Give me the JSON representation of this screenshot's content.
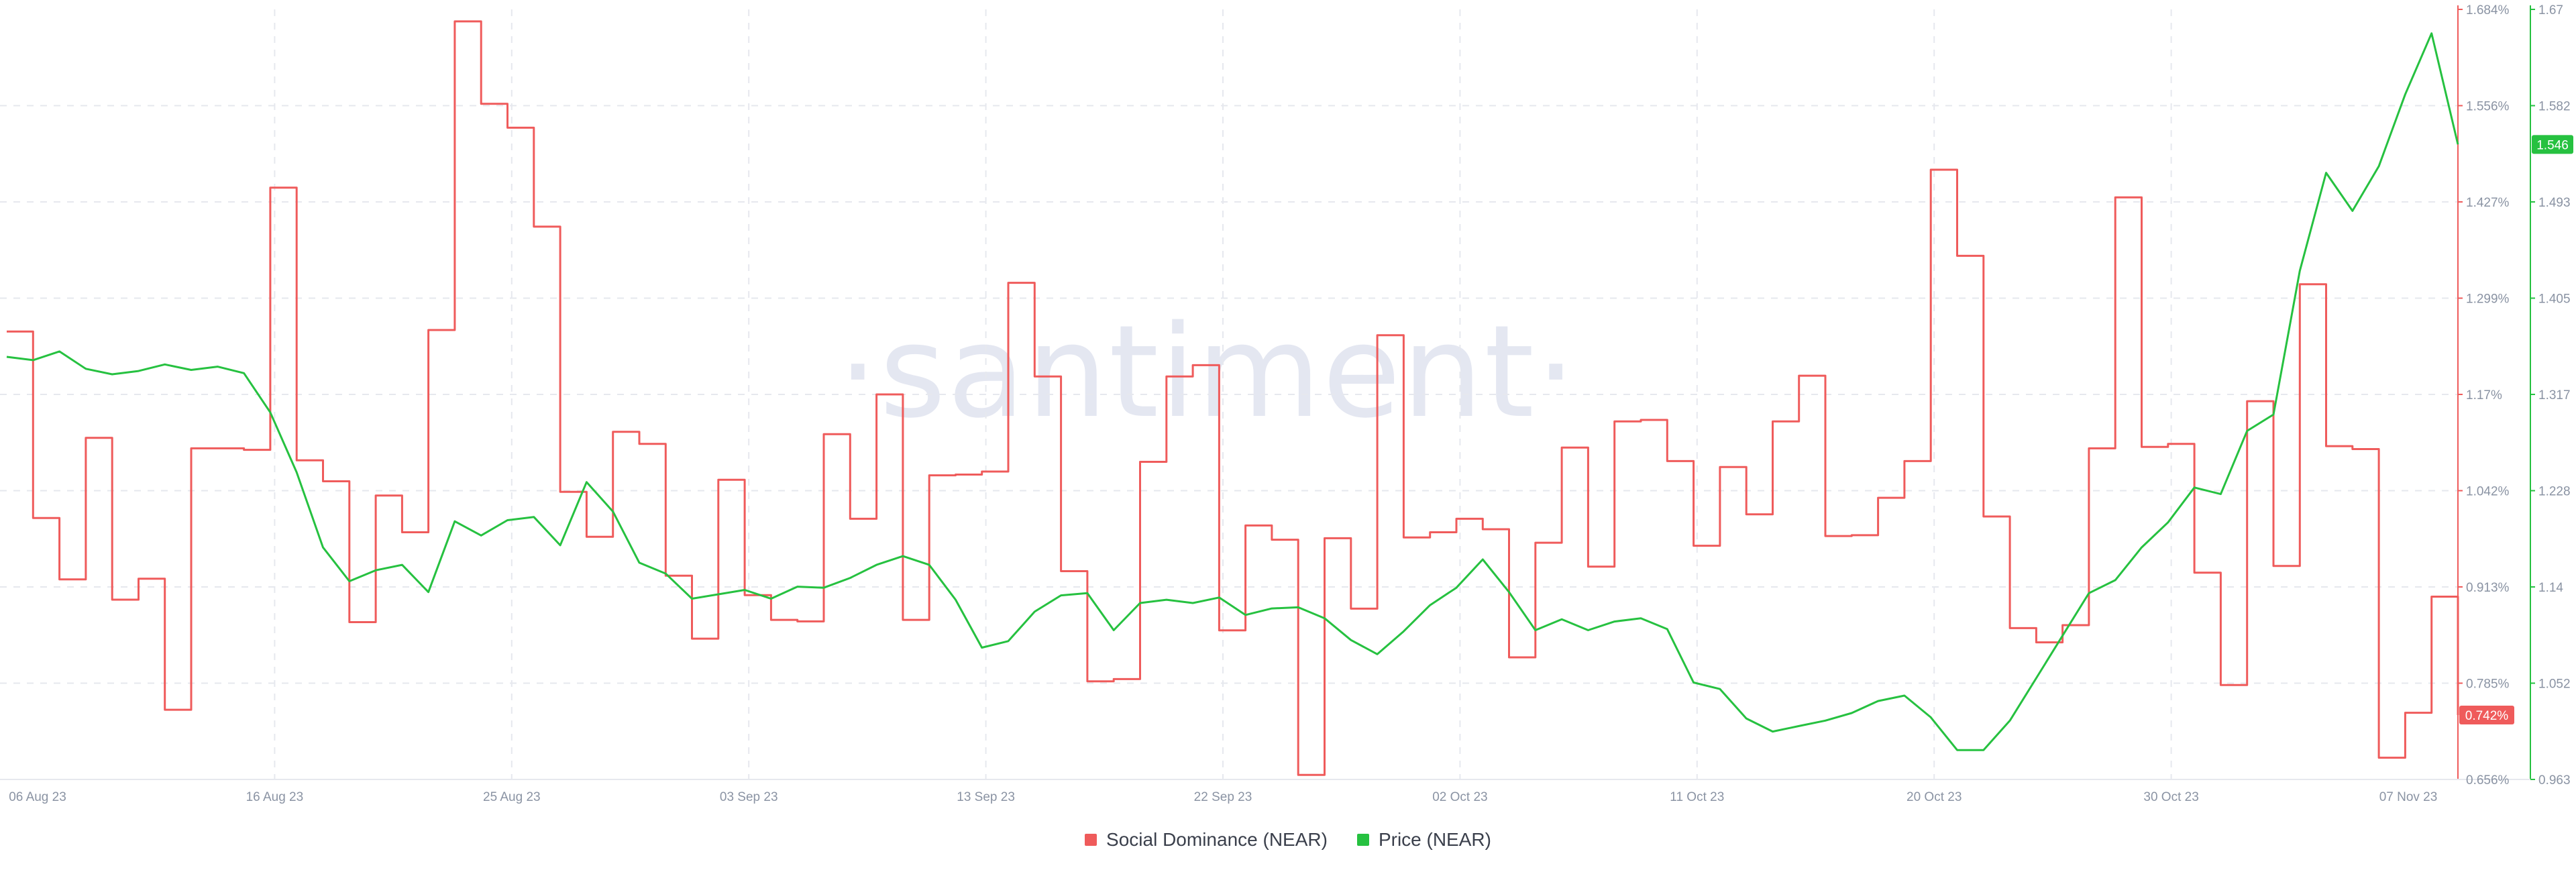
{
  "watermark": "·santiment·",
  "colors": {
    "social": "#ef5b5b",
    "price": "#26c140",
    "grid": "#e6e8ee",
    "tick_text": "#8a93a3",
    "background": "#ffffff"
  },
  "legend": [
    {
      "label": "Social Dominance (NEAR)",
      "color": "#ef5b5b"
    },
    {
      "label": "Price (NEAR)",
      "color": "#26c140"
    }
  ],
  "chart_data": {
    "type": "line",
    "grid": true,
    "legend_position": "bottom-center",
    "x_ticks": [
      "06 Aug 23",
      "16 Aug 23",
      "25 Aug 23",
      "03 Sep 23",
      "13 Sep 23",
      "22 Sep 23",
      "02 Oct 23",
      "11 Oct 23",
      "20 Oct 23",
      "30 Oct 23",
      "07 Nov 23"
    ],
    "x_range": [
      "2023-08-06",
      "2023-11-07"
    ],
    "left_axis": {
      "series": "Social Dominance (NEAR)",
      "ticks": [
        "1.684%",
        "1.556%",
        "1.427%",
        "1.299%",
        "1.17%",
        "1.042%",
        "0.913%",
        "0.785%",
        "0.656%"
      ],
      "range": [
        0.656,
        1.684
      ],
      "last_value_label": "0.742%"
    },
    "right_axis": {
      "series": "Price (NEAR)",
      "ticks": [
        "1.67",
        "1.582",
        "1.493",
        "1.405",
        "1.317",
        "1.228",
        "1.14",
        "1.052",
        "0.963"
      ],
      "range": [
        0.963,
        1.67
      ],
      "last_value_label": "1.546"
    },
    "series": [
      {
        "name": "Social Dominance (NEAR)",
        "axis": "left",
        "interpolation": "step-after",
        "points": [
          [
            "2023-08-06",
            1.254
          ],
          [
            "2023-08-07",
            1.005
          ],
          [
            "2023-08-08",
            0.923
          ],
          [
            "2023-08-09",
            1.112
          ],
          [
            "2023-08-10",
            0.896
          ],
          [
            "2023-08-11",
            0.924
          ],
          [
            "2023-08-12",
            0.749
          ],
          [
            "2023-08-13",
            1.098
          ],
          [
            "2023-08-15",
            1.096
          ],
          [
            "2023-08-16",
            1.446
          ],
          [
            "2023-08-17",
            1.082
          ],
          [
            "2023-08-18",
            1.054
          ],
          [
            "2023-08-19",
            0.866
          ],
          [
            "2023-08-20",
            1.035
          ],
          [
            "2023-08-21",
            0.986
          ],
          [
            "2023-08-22",
            1.256
          ],
          [
            "2023-08-23",
            1.668
          ],
          [
            "2023-08-24",
            1.558
          ],
          [
            "2023-08-25",
            1.526
          ],
          [
            "2023-08-26",
            1.394
          ],
          [
            "2023-08-27",
            1.04
          ],
          [
            "2023-08-28",
            0.98
          ],
          [
            "2023-08-29",
            1.12
          ],
          [
            "2023-08-30",
            1.104
          ],
          [
            "2023-08-31",
            0.928
          ],
          [
            "2023-09-01",
            0.844
          ],
          [
            "2023-09-02",
            1.056
          ],
          [
            "2023-09-03",
            0.902
          ],
          [
            "2023-09-04",
            0.869
          ],
          [
            "2023-09-05",
            0.867
          ],
          [
            "2023-09-06",
            1.117
          ],
          [
            "2023-09-07",
            1.004
          ],
          [
            "2023-09-08",
            1.17
          ],
          [
            "2023-09-09",
            0.869
          ],
          [
            "2023-09-10",
            1.062
          ],
          [
            "2023-09-11",
            1.063
          ],
          [
            "2023-09-12",
            1.067
          ],
          [
            "2023-09-13",
            1.319
          ],
          [
            "2023-09-14",
            1.194
          ],
          [
            "2023-09-15",
            0.934
          ],
          [
            "2023-09-16",
            0.787
          ],
          [
            "2023-09-17",
            0.79
          ],
          [
            "2023-09-18",
            1.08
          ],
          [
            "2023-09-19",
            1.194
          ],
          [
            "2023-09-20",
            1.209
          ],
          [
            "2023-09-21",
            0.855
          ],
          [
            "2023-09-22",
            0.995
          ],
          [
            "2023-09-23",
            0.976
          ],
          [
            "2023-09-24",
            0.662
          ],
          [
            "2023-09-25",
            0.978
          ],
          [
            "2023-09-26",
            0.884
          ],
          [
            "2023-09-27",
            1.249
          ],
          [
            "2023-09-28",
            0.979
          ],
          [
            "2023-09-29",
            0.986
          ],
          [
            "2023-09-30",
            1.004
          ],
          [
            "2023-10-01",
            0.99
          ],
          [
            "2023-10-02",
            0.819
          ],
          [
            "2023-10-03",
            0.972
          ],
          [
            "2023-10-04",
            1.099
          ],
          [
            "2023-10-05",
            0.94
          ],
          [
            "2023-10-06",
            1.134
          ],
          [
            "2023-10-07",
            1.136
          ],
          [
            "2023-10-08",
            1.081
          ],
          [
            "2023-10-09",
            0.968
          ],
          [
            "2023-10-10",
            1.073
          ],
          [
            "2023-10-11",
            1.01
          ],
          [
            "2023-10-12",
            1.134
          ],
          [
            "2023-10-13",
            1.195
          ],
          [
            "2023-10-14",
            0.981
          ],
          [
            "2023-10-15",
            0.982
          ],
          [
            "2023-10-16",
            1.032
          ],
          [
            "2023-10-17",
            1.081
          ],
          [
            "2023-10-18",
            1.47
          ],
          [
            "2023-10-19",
            1.355
          ],
          [
            "2023-10-20",
            1.007
          ],
          [
            "2023-10-21",
            0.858
          ],
          [
            "2023-10-22",
            0.839
          ],
          [
            "2023-10-23",
            0.862
          ],
          [
            "2023-10-24",
            1.098
          ],
          [
            "2023-10-25",
            1.433
          ],
          [
            "2023-10-26",
            1.1
          ],
          [
            "2023-10-27",
            1.104
          ],
          [
            "2023-10-28",
            0.932
          ],
          [
            "2023-10-29",
            0.782
          ],
          [
            "2023-10-30",
            1.161
          ],
          [
            "2023-10-31",
            0.941
          ],
          [
            "2023-11-01",
            1.317
          ],
          [
            "2023-11-02",
            1.101
          ],
          [
            "2023-11-03",
            1.097
          ],
          [
            "2023-11-04",
            0.685
          ],
          [
            "2023-11-05",
            0.745
          ],
          [
            "2023-11-06",
            0.9
          ],
          [
            "2023-11-07",
            0.742
          ]
        ]
      },
      {
        "name": "Price (NEAR)",
        "axis": "right",
        "interpolation": "linear",
        "points": [
          [
            "2023-08-06",
            1.351
          ],
          [
            "2023-08-07",
            1.348
          ],
          [
            "2023-08-08",
            1.356
          ],
          [
            "2023-08-09",
            1.34
          ],
          [
            "2023-08-10",
            1.335
          ],
          [
            "2023-08-11",
            1.338
          ],
          [
            "2023-08-12",
            1.344
          ],
          [
            "2023-08-13",
            1.339
          ],
          [
            "2023-08-14",
            1.342
          ],
          [
            "2023-08-15",
            1.336
          ],
          [
            "2023-08-16",
            1.3
          ],
          [
            "2023-08-17",
            1.245
          ],
          [
            "2023-08-18",
            1.176
          ],
          [
            "2023-08-19",
            1.145
          ],
          [
            "2023-08-20",
            1.155
          ],
          [
            "2023-08-21",
            1.16
          ],
          [
            "2023-08-22",
            1.135
          ],
          [
            "2023-08-23",
            1.2
          ],
          [
            "2023-08-24",
            1.187
          ],
          [
            "2023-08-25",
            1.201
          ],
          [
            "2023-08-26",
            1.204
          ],
          [
            "2023-08-27",
            1.178
          ],
          [
            "2023-08-28",
            1.236
          ],
          [
            "2023-08-29",
            1.209
          ],
          [
            "2023-08-30",
            1.162
          ],
          [
            "2023-08-31",
            1.152
          ],
          [
            "2023-09-01",
            1.129
          ],
          [
            "2023-09-02",
            1.133
          ],
          [
            "2023-09-03",
            1.137
          ],
          [
            "2023-09-04",
            1.129
          ],
          [
            "2023-09-05",
            1.14
          ],
          [
            "2023-09-06",
            1.139
          ],
          [
            "2023-09-07",
            1.148
          ],
          [
            "2023-09-08",
            1.16
          ],
          [
            "2023-09-09",
            1.168
          ],
          [
            "2023-09-10",
            1.16
          ],
          [
            "2023-09-11",
            1.128
          ],
          [
            "2023-09-12",
            1.084
          ],
          [
            "2023-09-13",
            1.09
          ],
          [
            "2023-09-14",
            1.117
          ],
          [
            "2023-09-15",
            1.132
          ],
          [
            "2023-09-16",
            1.134
          ],
          [
            "2023-09-17",
            1.1
          ],
          [
            "2023-09-18",
            1.125
          ],
          [
            "2023-09-19",
            1.128
          ],
          [
            "2023-09-20",
            1.125
          ],
          [
            "2023-09-21",
            1.13
          ],
          [
            "2023-09-22",
            1.114
          ],
          [
            "2023-09-23",
            1.12
          ],
          [
            "2023-09-24",
            1.121
          ],
          [
            "2023-09-25",
            1.111
          ],
          [
            "2023-09-26",
            1.091
          ],
          [
            "2023-09-27",
            1.078
          ],
          [
            "2023-09-28",
            1.099
          ],
          [
            "2023-09-29",
            1.123
          ],
          [
            "2023-09-30",
            1.139
          ],
          [
            "2023-10-01",
            1.165
          ],
          [
            "2023-10-02",
            1.135
          ],
          [
            "2023-10-03",
            1.1
          ],
          [
            "2023-10-04",
            1.11
          ],
          [
            "2023-10-05",
            1.1
          ],
          [
            "2023-10-06",
            1.108
          ],
          [
            "2023-10-07",
            1.111
          ],
          [
            "2023-10-08",
            1.101
          ],
          [
            "2023-10-09",
            1.052
          ],
          [
            "2023-10-10",
            1.046
          ],
          [
            "2023-10-11",
            1.019
          ],
          [
            "2023-10-12",
            1.007
          ],
          [
            "2023-10-13",
            1.012
          ],
          [
            "2023-10-14",
            1.017
          ],
          [
            "2023-10-15",
            1.024
          ],
          [
            "2023-10-16",
            1.035
          ],
          [
            "2023-10-17",
            1.04
          ],
          [
            "2023-10-18",
            1.02
          ],
          [
            "2023-10-19",
            0.99
          ],
          [
            "2023-10-20",
            0.99
          ],
          [
            "2023-10-21",
            1.017
          ],
          [
            "2023-10-22",
            1.056
          ],
          [
            "2023-10-23",
            1.095
          ],
          [
            "2023-10-24",
            1.134
          ],
          [
            "2023-10-25",
            1.146
          ],
          [
            "2023-10-26",
            1.176
          ],
          [
            "2023-10-27",
            1.199
          ],
          [
            "2023-10-28",
            1.231
          ],
          [
            "2023-10-29",
            1.225
          ],
          [
            "2023-10-30",
            1.283
          ],
          [
            "2023-10-31",
            1.298
          ],
          [
            "2023-11-01",
            1.43
          ],
          [
            "2023-11-02",
            1.52
          ],
          [
            "2023-11-03",
            1.485
          ],
          [
            "2023-11-04",
            1.526
          ],
          [
            "2023-11-05",
            1.592
          ],
          [
            "2023-11-06",
            1.648
          ],
          [
            "2023-11-07",
            1.546
          ]
        ]
      }
    ]
  }
}
